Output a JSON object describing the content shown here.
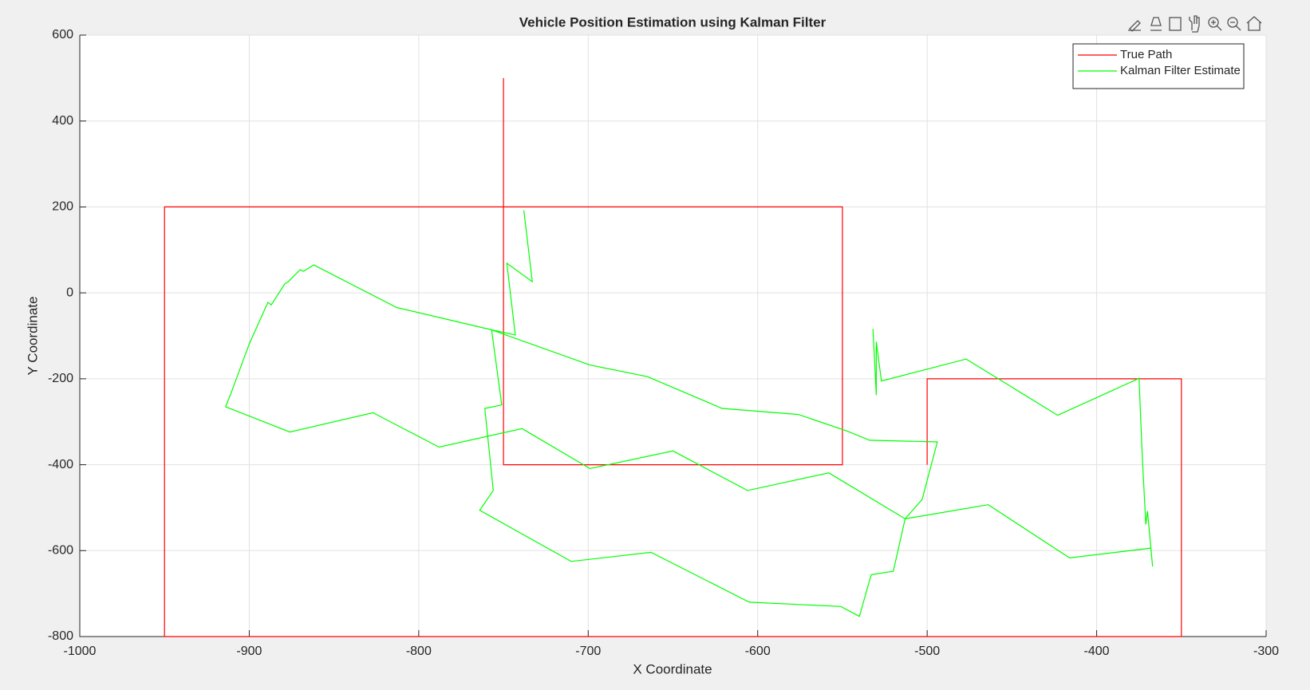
{
  "chart_data": {
    "type": "line",
    "title": "Vehicle Position Estimation using Kalman Filter",
    "x_label": "X Coordinate",
    "y_label": "Y Coordinate",
    "xlim": [
      -1000,
      -300
    ],
    "ylim": [
      -800,
      600
    ],
    "xticks": [
      -1000,
      -900,
      -800,
      -700,
      -600,
      -500,
      -400,
      -300
    ],
    "yticks": [
      -800,
      -600,
      -400,
      -200,
      0,
      200,
      400,
      600
    ],
    "grid": true,
    "legend": "northeast",
    "series": [
      {
        "name": "True Path",
        "color": "#ff0000",
        "x": [
          -750,
          -750,
          -550,
          -550,
          -950,
          -950,
          -350,
          -350,
          -500,
          -500
        ],
        "values": [
          500,
          -400,
          -400,
          200,
          200,
          -800,
          -800,
          -200,
          -200,
          -400
        ]
      },
      {
        "name": "Kalman Filter Estimate",
        "color": "#00ff00",
        "x": [
          -738,
          -733,
          -748,
          -743,
          -757,
          -751,
          -761,
          -756,
          -764,
          -710,
          -663,
          -605,
          -551,
          -540,
          -533,
          -520,
          -513,
          -503,
          -494,
          -534,
          -547,
          -576,
          -621,
          -665,
          -699,
          -757,
          -813,
          -862,
          -868,
          -870,
          -877,
          -879,
          -887,
          -889,
          -900,
          -911,
          -914,
          -876,
          -827,
          -788,
          -739,
          -699,
          -650,
          -606,
          -558,
          -513,
          -464,
          -416,
          -368,
          -367,
          -370,
          -371,
          -373,
          -375,
          -423,
          -477,
          -527,
          -530,
          -530,
          -532
        ],
        "values": [
          192,
          26,
          69,
          -98,
          -86,
          -261,
          -269,
          -460,
          -506,
          -625,
          -604,
          -720,
          -730,
          -753,
          -656,
          -648,
          -526,
          -481,
          -347,
          -343,
          -322,
          -283,
          -269,
          -195,
          -168,
          -86,
          -34,
          65,
          50,
          54,
          26,
          21,
          -28,
          -22,
          -119,
          -236,
          -265,
          -324,
          -279,
          -359,
          -316,
          -409,
          -368,
          -460,
          -419,
          -526,
          -493,
          -617,
          -594,
          -637,
          -508,
          -539,
          -386,
          -199,
          -285,
          -154,
          -205,
          -114,
          -238,
          -84
        ]
      }
    ]
  }
}
